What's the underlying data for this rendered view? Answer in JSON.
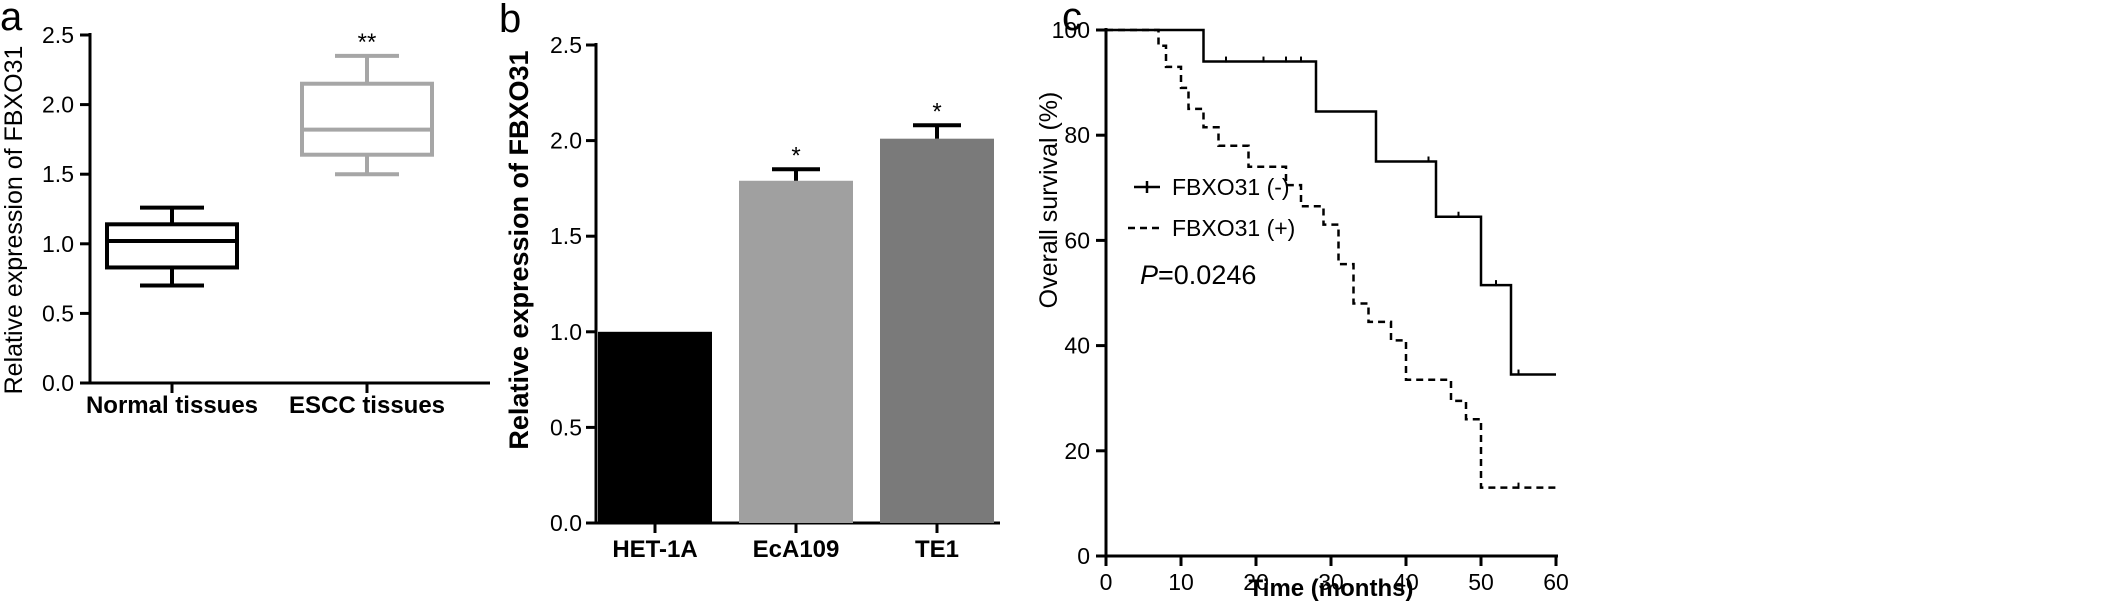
{
  "chart_data": [
    {
      "panel": "a",
      "type": "box",
      "ylabel": "Relative expression of FBXO31",
      "ylim": [
        0,
        2.5
      ],
      "yticks": [
        "0.0",
        "0.5",
        "1.0",
        "1.5",
        "2.0",
        "2.5"
      ],
      "categories": [
        "Normal tissues",
        "ESCC tissues"
      ],
      "boxes": [
        {
          "category": "Normal tissues",
          "min": 0.7,
          "q1": 0.83,
          "median": 1.02,
          "q3": 1.14,
          "max": 1.26,
          "color": "#000000",
          "label": ""
        },
        {
          "category": "ESCC tissues",
          "min": 1.5,
          "q1": 1.64,
          "median": 1.82,
          "q3": 2.15,
          "max": 2.35,
          "color": "#a6a6a6",
          "label": "**"
        }
      ],
      "grid": false
    },
    {
      "panel": "b",
      "type": "bar",
      "ylabel": "Relative expression of FBXO31",
      "ylim": [
        0,
        2.5
      ],
      "yticks": [
        "0.0",
        "0.5",
        "1.0",
        "1.5",
        "2.0",
        "2.5"
      ],
      "categories": [
        "HET-1A",
        "EcA109",
        "TE1"
      ],
      "values": [
        1.0,
        1.79,
        2.01
      ],
      "errors": [
        0,
        0.06,
        0.07
      ],
      "labels": [
        "",
        "*",
        "*"
      ],
      "colors": [
        "#000000",
        "#a0a0a0",
        "#7a7a7a"
      ],
      "grid": false
    },
    {
      "panel": "c",
      "type": "line",
      "subtype": "kaplan-meier",
      "xlabel": "Time (months)",
      "ylabel": "Overall survival (%)",
      "xlim": [
        0,
        60
      ],
      "ylim": [
        0,
        100
      ],
      "xticks": [
        "0",
        "10",
        "20",
        "30",
        "40",
        "50",
        "60"
      ],
      "yticks": [
        "0",
        "20",
        "40",
        "60",
        "80",
        "100"
      ],
      "legend_position": "center-left",
      "series": [
        {
          "name": "FBXO31 (-)",
          "style": "solid",
          "steps": [
            [
              0,
              100
            ],
            [
              13,
              94
            ],
            [
              28,
              84.5
            ],
            [
              36,
              75
            ],
            [
              44,
              64.5
            ],
            [
              50,
              51.5
            ],
            [
              54,
              34.5
            ],
            [
              60,
              34.5
            ]
          ],
          "censored": [
            [
              16,
              94
            ],
            [
              21,
              94
            ],
            [
              24,
              94
            ],
            [
              26,
              94
            ],
            [
              43,
              75
            ],
            [
              47,
              64.5
            ],
            [
              52,
              51.5
            ],
            [
              55,
              34.5
            ]
          ]
        },
        {
          "name": "FBXO31 (+)",
          "style": "dashed",
          "steps": [
            [
              0,
              100
            ],
            [
              7,
              97
            ],
            [
              8,
              93
            ],
            [
              10,
              89
            ],
            [
              11,
              85
            ],
            [
              13,
              81.5
            ],
            [
              15,
              78
            ],
            [
              19,
              74
            ],
            [
              24,
              70.5
            ],
            [
              26,
              66.5
            ],
            [
              29,
              63
            ],
            [
              31,
              55.5
            ],
            [
              33,
              48
            ],
            [
              35,
              44.5
            ],
            [
              38,
              41
            ],
            [
              40,
              33.5
            ],
            [
              46,
              29.5
            ],
            [
              48,
              26
            ],
            [
              50,
              13
            ],
            [
              60,
              13
            ]
          ],
          "censored": [
            [
              55,
              13
            ]
          ]
        }
      ],
      "annotation_italic": "P",
      "annotation_rest": "=0.0246",
      "grid": false
    }
  ],
  "panel_letters": {
    "a": "a",
    "b": "b",
    "c": "c"
  }
}
